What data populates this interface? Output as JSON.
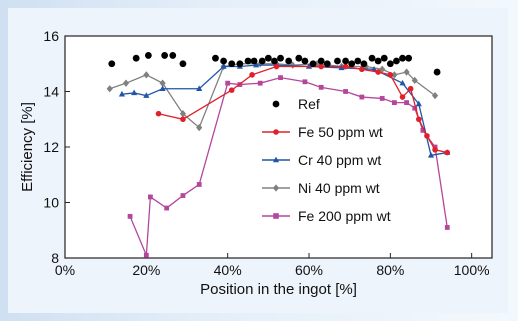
{
  "chart_data": {
    "type": "line",
    "xlabel": "Position in the ingot [%]",
    "ylabel": "Efficiency [%]",
    "xlim": [
      0,
      105
    ],
    "ylim": [
      8,
      16
    ],
    "x_ticks": [
      0,
      20,
      40,
      60,
      80,
      100
    ],
    "x_tick_labels": [
      "0%",
      "20%",
      "40%",
      "60%",
      "80%",
      "100%"
    ],
    "y_ticks": [
      8,
      10,
      12,
      14,
      16
    ],
    "y_tick_labels": [
      "8",
      "10",
      "12",
      "14",
      "16"
    ],
    "grid": false,
    "legend_position": "inside-center-right",
    "series": [
      {
        "name": "Ref",
        "marker": "circle",
        "line": false,
        "color": "#000000",
        "points": [
          [
            11.5,
            15.0
          ],
          [
            17.5,
            15.2
          ],
          [
            20.5,
            15.3
          ],
          [
            24.5,
            15.3
          ],
          [
            26.5,
            15.3
          ],
          [
            29,
            15.0
          ],
          [
            37,
            15.2
          ],
          [
            39,
            15.1
          ],
          [
            41,
            15.0
          ],
          [
            43,
            15.0
          ],
          [
            45,
            15.1
          ],
          [
            46.5,
            15.1
          ],
          [
            48.5,
            15.1
          ],
          [
            50,
            15.2
          ],
          [
            51.5,
            15.1
          ],
          [
            53,
            15.2
          ],
          [
            55,
            15.1
          ],
          [
            57.5,
            15.2
          ],
          [
            59,
            15.1
          ],
          [
            61,
            15.0
          ],
          [
            63,
            15.1
          ],
          [
            64.5,
            15.0
          ],
          [
            67,
            15.1
          ],
          [
            69,
            15.1
          ],
          [
            70.5,
            15.0
          ],
          [
            72,
            15.1
          ],
          [
            73.5,
            15.0
          ],
          [
            75.5,
            15.2
          ],
          [
            77,
            15.1
          ],
          [
            78.5,
            15.2
          ],
          [
            80,
            15.0
          ],
          [
            81.5,
            15.1
          ],
          [
            83,
            15.2
          ],
          [
            84.5,
            15.2
          ],
          [
            91.5,
            14.7
          ]
        ]
      },
      {
        "name": "Fe 50 ppm wt",
        "marker": "circle",
        "line": true,
        "color": "#e0202a",
        "points": [
          [
            23,
            13.2
          ],
          [
            29,
            13.0
          ],
          [
            41,
            14.05
          ],
          [
            46,
            14.6
          ],
          [
            52,
            14.9
          ],
          [
            63,
            14.9
          ],
          [
            69,
            14.9
          ],
          [
            73,
            14.8
          ],
          [
            77,
            14.7
          ],
          [
            80,
            14.6
          ],
          [
            83,
            13.8
          ],
          [
            85,
            14.1
          ],
          [
            87,
            13.0
          ],
          [
            89,
            12.4
          ],
          [
            91,
            11.9
          ],
          [
            94,
            11.8
          ]
        ]
      },
      {
        "name": "Cr 40 ppm wt",
        "marker": "triangle",
        "line": true,
        "color": "#1f56a8",
        "points": [
          [
            14,
            13.9
          ],
          [
            17,
            13.95
          ],
          [
            20,
            13.85
          ],
          [
            24,
            14.1
          ],
          [
            33,
            14.1
          ],
          [
            39,
            14.9
          ],
          [
            43,
            14.9
          ],
          [
            47,
            14.95
          ],
          [
            52,
            14.95
          ],
          [
            60,
            14.9
          ],
          [
            68,
            14.85
          ],
          [
            76,
            14.8
          ],
          [
            83,
            14.3
          ],
          [
            87,
            13.55
          ],
          [
            90,
            11.7
          ],
          [
            94,
            11.8
          ]
        ]
      },
      {
        "name": "Ni 40 ppm wt",
        "marker": "diamond",
        "line": true,
        "color": "#808080",
        "points": [
          [
            11,
            14.1
          ],
          [
            15,
            14.3
          ],
          [
            20,
            14.6
          ],
          [
            24,
            14.3
          ],
          [
            29,
            13.2
          ],
          [
            33,
            12.7
          ],
          [
            39,
            14.9
          ],
          [
            43,
            15.0
          ],
          [
            48,
            15.0
          ],
          [
            52,
            15.0
          ],
          [
            56,
            14.95
          ],
          [
            62,
            15.0
          ],
          [
            68,
            14.9
          ],
          [
            74,
            14.9
          ],
          [
            78,
            14.8
          ],
          [
            81,
            14.6
          ],
          [
            84,
            14.7
          ],
          [
            86,
            14.4
          ],
          [
            91,
            13.85
          ]
        ]
      },
      {
        "name": "Fe 200 ppm wt",
        "marker": "square",
        "line": true,
        "color": "#b4479c",
        "points": [
          [
            16,
            9.5
          ],
          [
            20,
            8.1
          ],
          [
            21,
            10.2
          ],
          [
            25,
            9.8
          ],
          [
            29,
            10.25
          ],
          [
            33,
            10.65
          ],
          [
            40,
            14.3
          ],
          [
            43,
            14.25
          ],
          [
            48,
            14.3
          ],
          [
            53,
            14.5
          ],
          [
            59,
            14.35
          ],
          [
            63,
            14.15
          ],
          [
            69,
            14.0
          ],
          [
            73,
            13.8
          ],
          [
            78,
            13.75
          ],
          [
            81,
            13.6
          ],
          [
            84,
            13.6
          ],
          [
            86,
            13.4
          ],
          [
            88,
            12.6
          ],
          [
            91,
            12.0
          ],
          [
            94,
            9.1
          ]
        ]
      }
    ]
  }
}
